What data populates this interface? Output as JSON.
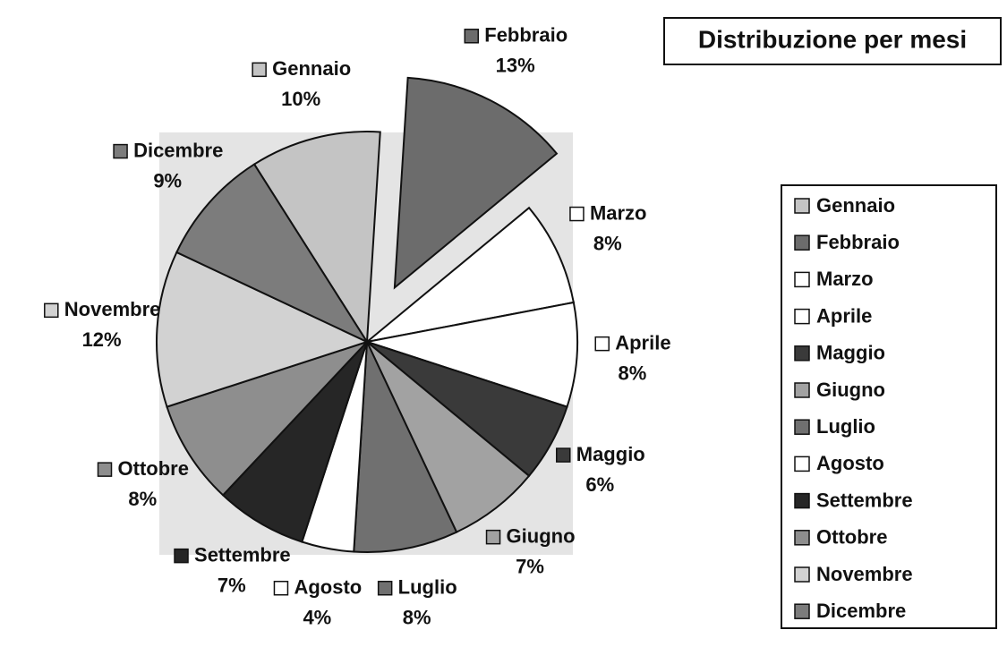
{
  "chart_data": {
    "type": "pie",
    "title": "Distribuzione per mesi",
    "categories": [
      "Gennaio",
      "Febbraio",
      "Marzo",
      "Aprile",
      "Maggio",
      "Giugno",
      "Luglio",
      "Agosto",
      "Settembre",
      "Ottobre",
      "Novembre",
      "Dicembre"
    ],
    "values": [
      10,
      13,
      8,
      8,
      6,
      7,
      8,
      4,
      7,
      8,
      12,
      9
    ],
    "value_labels": [
      "10%",
      "13%",
      "8%",
      "8%",
      "6%",
      "7%",
      "8%",
      "4%",
      "7%",
      "8%",
      "12%",
      "9%"
    ],
    "colors": [
      "#c4c4c4",
      "#6c6c6c",
      "#ffffff",
      "#ffffff",
      "#3a3a3a",
      "#a2a2a2",
      "#707070",
      "#ffffff",
      "#262626",
      "#8e8e8e",
      "#d2d2d2",
      "#7c7c7c"
    ],
    "legend": "right"
  }
}
